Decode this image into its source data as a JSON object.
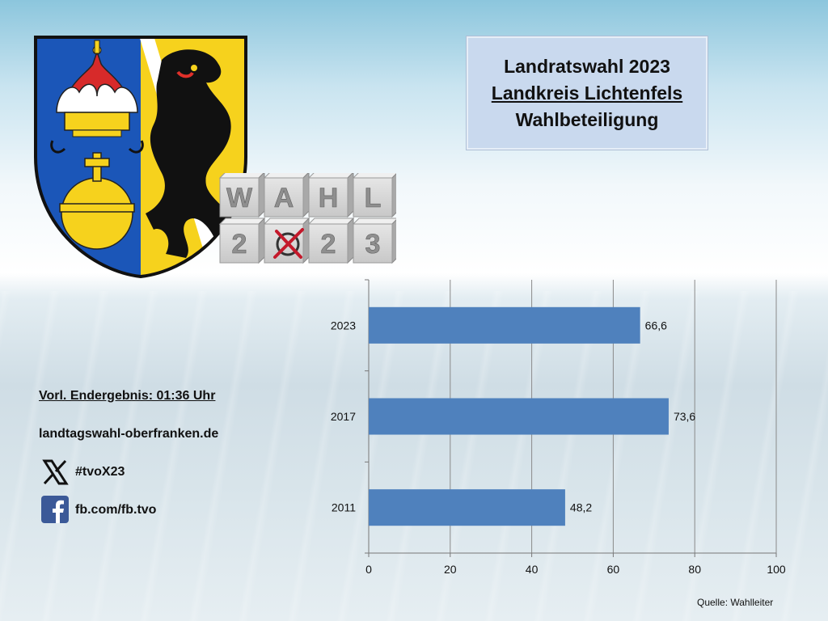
{
  "title": {
    "line1": "Landratswahl 2023",
    "line2": "Landkreis Lichtenfels",
    "line3": "Wahlbeteiligung"
  },
  "info": {
    "result_status": "Vorl. Endergebnis: 01:36 Uhr",
    "website": "landtagswahl-oberfranken.de",
    "x_handle": "#tvoX23",
    "facebook": "fb.com/fb.tvo"
  },
  "cube_text": {
    "top": [
      "W",
      "A",
      "H",
      "L"
    ],
    "bottom": [
      "2",
      "",
      "2",
      "3"
    ]
  },
  "source": "Quelle: Wahlleiter",
  "colors": {
    "bar": "#4f81bd",
    "title_box": "#c9d9ee"
  },
  "chart_data": {
    "type": "bar",
    "orientation": "horizontal",
    "categories": [
      "2023",
      "2017",
      "2011"
    ],
    "values": [
      66.6,
      73.6,
      48.2
    ],
    "value_labels": [
      "66,6",
      "73,6",
      "48,2"
    ],
    "xlim": [
      0,
      100
    ],
    "xticks": [
      0,
      20,
      40,
      60,
      80,
      100
    ],
    "grid": true,
    "legend": "none"
  }
}
